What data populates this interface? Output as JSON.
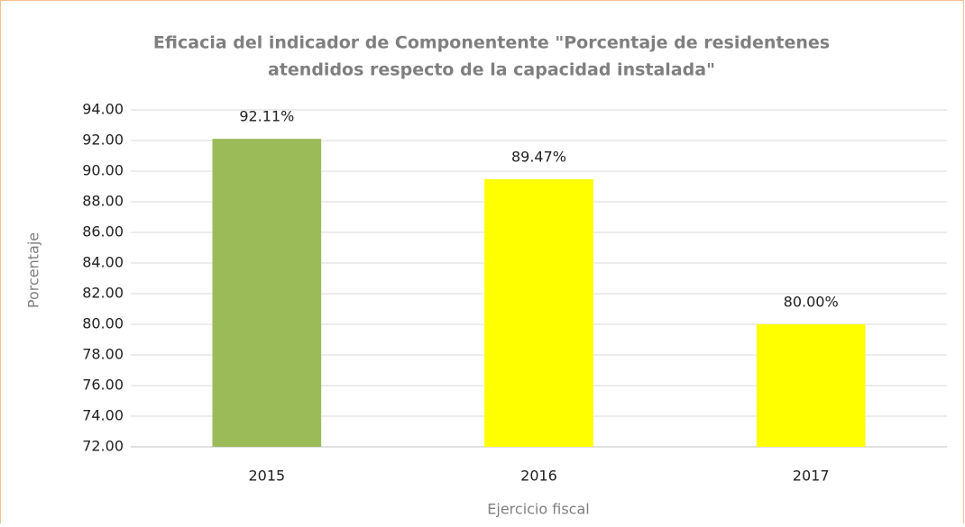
{
  "chart_data": {
    "type": "bar",
    "title": [
      "Eficacia del indicador de Componentente \"Porcentaje de residentenes",
      "atendidos respecto de la capacidad instalada\""
    ],
    "x_label": "Ejercicio fiscal",
    "y_label": "Porcentaje",
    "categories": [
      "2015",
      "2016",
      "2017"
    ],
    "values": [
      92.11,
      89.47,
      80.0
    ],
    "value_labels": [
      "92.11%",
      "89.47%",
      "80.00%"
    ],
    "colors": [
      "#9bbb59",
      "#ffff00",
      "#ffff00"
    ],
    "ylim": [
      72,
      94
    ],
    "yticks": [
      {
        "value": 72,
        "label": "72.00"
      },
      {
        "value": 74,
        "label": "74.00"
      },
      {
        "value": 76,
        "label": "76.00"
      },
      {
        "value": 78,
        "label": "78.00"
      },
      {
        "value": 80,
        "label": "80.00"
      },
      {
        "value": 82,
        "label": "82.00"
      },
      {
        "value": 84,
        "label": "84.00"
      },
      {
        "value": 86,
        "label": "86.00"
      },
      {
        "value": 88,
        "label": "88.00"
      },
      {
        "value": 90,
        "label": "90.00"
      },
      {
        "value": 92,
        "label": "92.00"
      },
      {
        "value": 94,
        "label": "94.00"
      }
    ],
    "grid": true
  }
}
